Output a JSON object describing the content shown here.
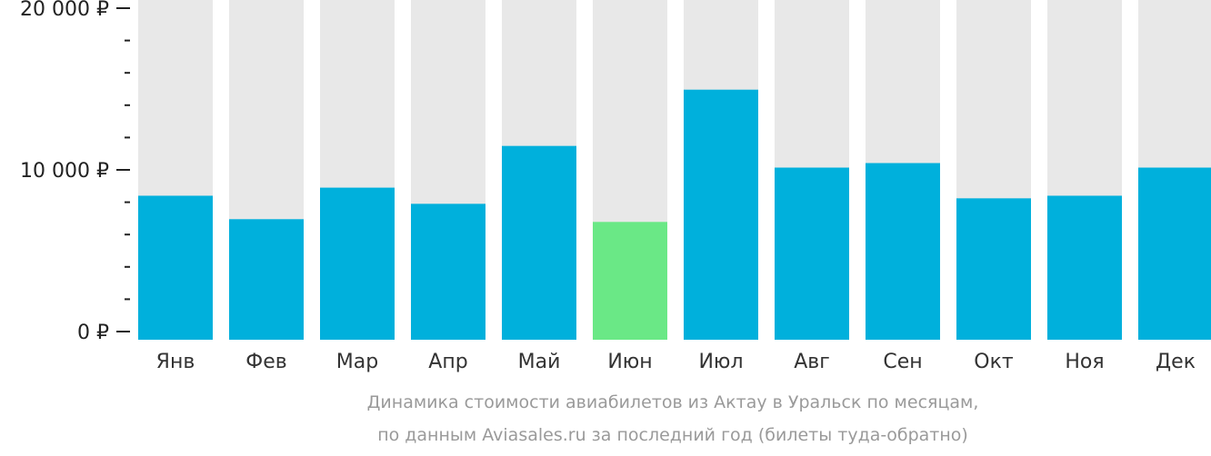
{
  "chart_data": {
    "type": "bar",
    "title": "Динамика стоимости авиабилетов из Актау в Уральск по месяцам,",
    "subtitle": "по данным Aviasales.ru за последний год (билеты туда-обратно)",
    "categories": [
      "Янв",
      "Фев",
      "Мар",
      "Апр",
      "Май",
      "Июн",
      "Июл",
      "Авг",
      "Сен",
      "Окт",
      "Ноя",
      "Дек"
    ],
    "values": [
      8400,
      6950,
      8900,
      7900,
      11480,
      6780,
      14960,
      10140,
      10420,
      8240,
      8400,
      10140
    ],
    "highlight_index": 5,
    "ylim": [
      0,
      20000
    ],
    "yticks": [
      {
        "value": 0,
        "label": "0 ₽"
      },
      {
        "value": 10000,
        "label": "10 000 ₽"
      },
      {
        "value": 20000,
        "label": "20 000 ₽"
      }
    ],
    "minor_step": 2000,
    "colors": {
      "bar": "#00b0dc",
      "highlight": "#6ae886",
      "background_bar": "#e8e8e8",
      "tick": "#222222"
    }
  }
}
